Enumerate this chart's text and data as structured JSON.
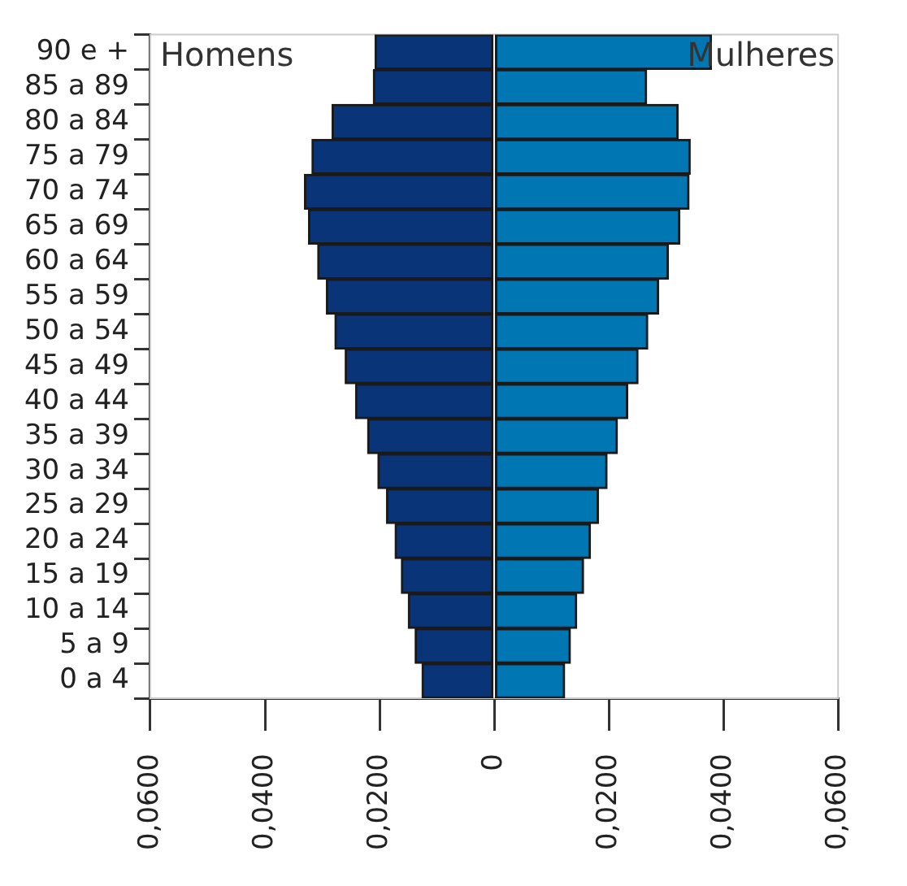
{
  "chart_data": {
    "type": "bar",
    "orientation": "horizontal",
    "stacked": true,
    "categories": [
      "90 e +",
      "85 a 89",
      "80 a 84",
      "75 a 79",
      "70 a 74",
      "65 a 69",
      "60 a 64",
      "55 a 59",
      "50 a 54",
      "45 a 49",
      "40 a 44",
      "35 a 39",
      "30 a 34",
      "25 a 29",
      "20 a 24",
      "15 a 19",
      "10 a 14",
      "5 a 9",
      "0 a 4"
    ],
    "series": [
      {
        "name": "Homens",
        "color": "#0a3478",
        "values": [
          -0.0208,
          -0.0211,
          -0.0283,
          -0.0318,
          -0.0331,
          -0.0324,
          -0.0308,
          -0.0293,
          -0.0278,
          -0.026,
          -0.0242,
          -0.0221,
          -0.0203,
          -0.0188,
          -0.0173,
          -0.0162,
          -0.015,
          -0.0138,
          -0.0126
        ]
      },
      {
        "name": "Mulheres",
        "color": "#0077b3",
        "values": [
          0.0379,
          0.0266,
          0.0321,
          0.0342,
          0.034,
          0.0324,
          0.0304,
          0.0287,
          0.0268,
          0.0251,
          0.0233,
          0.0215,
          0.0197,
          0.0182,
          0.0168,
          0.0156,
          0.0144,
          0.0133,
          0.0123
        ]
      }
    ],
    "xlim": [
      -0.06,
      0.06
    ],
    "xticks": [
      {
        "value": -0.06,
        "label": "0,0600"
      },
      {
        "value": -0.04,
        "label": "0,0400"
      },
      {
        "value": -0.02,
        "label": "0,0200"
      },
      0,
      {
        "value": 0.02,
        "label": "0,0200"
      },
      {
        "value": 0.04,
        "label": "0,0400"
      },
      {
        "value": 0.06,
        "label": "0,0600"
      }
    ],
    "grid": false
  }
}
